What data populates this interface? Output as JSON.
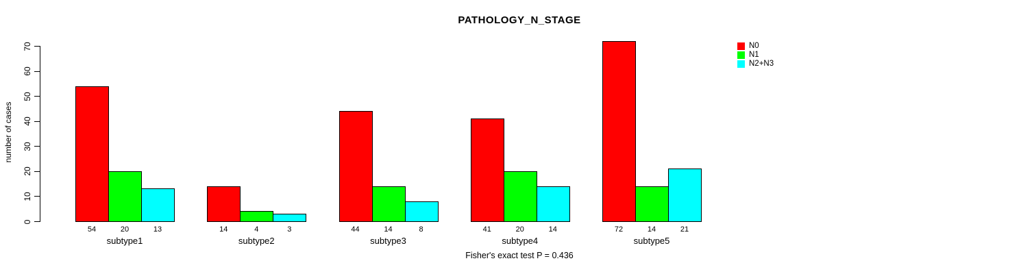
{
  "chart_data": {
    "type": "bar",
    "title": "PATHOLOGY_N_STAGE",
    "ylabel": "number of cases",
    "xlabel": "",
    "categories": [
      "subtype1",
      "subtype2",
      "subtype3",
      "subtype4",
      "subtype5"
    ],
    "series": [
      {
        "name": "N0",
        "color": "#FF0000",
        "values": [
          54,
          14,
          44,
          41,
          72
        ]
      },
      {
        "name": "N1",
        "color": "#00FF00",
        "values": [
          20,
          4,
          14,
          20,
          14
        ]
      },
      {
        "name": "N2+N3",
        "color": "#00FFFF",
        "values": [
          13,
          3,
          8,
          14,
          21
        ]
      }
    ],
    "yticks": [
      0,
      10,
      20,
      30,
      40,
      50,
      60,
      70
    ],
    "ylim": [
      0,
      70
    ],
    "grid": false,
    "legend_position": "top-right",
    "bar_value_labels": true,
    "footnote": "Fisher's exact test P = 0.436"
  },
  "colors": {
    "background": "#FFFFFF",
    "axis": "#000000",
    "text": "#000000"
  }
}
